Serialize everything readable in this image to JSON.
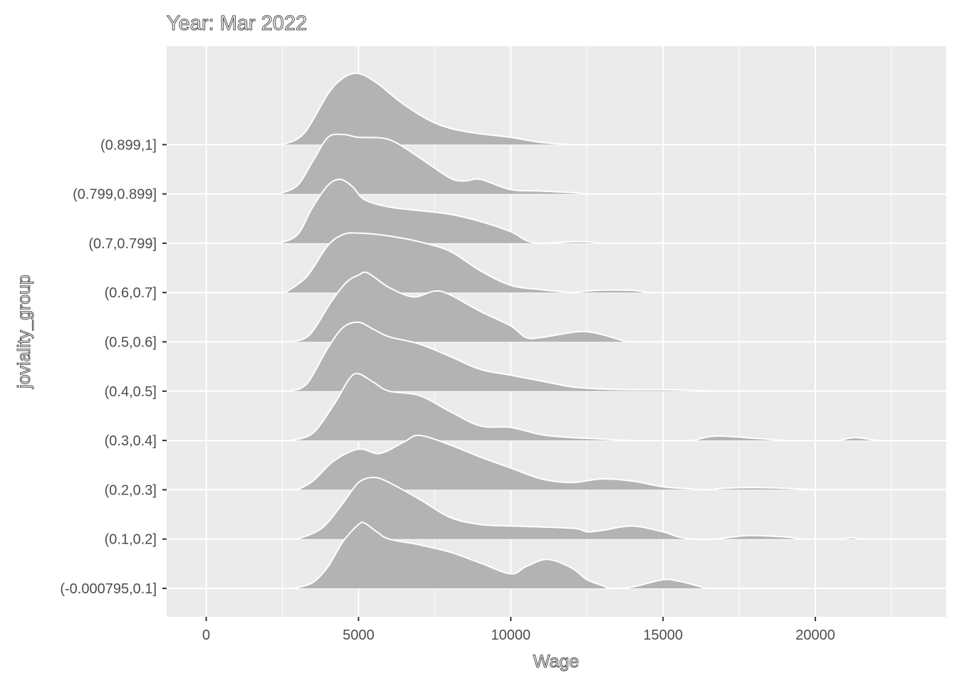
{
  "chart_data": {
    "type": "area",
    "subtype": "ridgeline-density",
    "title": "Year: Mar 2022",
    "xlabel": "Wage",
    "ylabel": "joviality_group",
    "xlim": [
      -1300,
      24300
    ],
    "x_ticks": [
      0,
      5000,
      10000,
      15000,
      20000
    ],
    "grid": true,
    "categories": [
      "(-0.000795,0.1]",
      "(0.1,0.2]",
      "(0.2,0.3]",
      "(0.3,0.4]",
      "(0.4,0.5]",
      "(0.5,0.6]",
      "(0.6,0.7]",
      "(0.7,0.799]",
      "(0.799,0.899]",
      "(0.899,1]"
    ],
    "series": [
      {
        "category": "(-0.000795,0.1]",
        "segments": [
          [
            [
              2900,
              0
            ],
            [
              3500,
              0.08
            ],
            [
              4000,
              0.3
            ],
            [
              4500,
              0.65
            ],
            [
              5000,
              0.88
            ],
            [
              5200,
              0.9
            ],
            [
              5600,
              0.78
            ],
            [
              6000,
              0.68
            ],
            [
              7000,
              0.6
            ],
            [
              8000,
              0.5
            ],
            [
              9000,
              0.35
            ],
            [
              10000,
              0.2
            ],
            [
              10500,
              0.3
            ],
            [
              11200,
              0.4
            ],
            [
              12000,
              0.28
            ],
            [
              12500,
              0.12
            ],
            [
              13000,
              0.04
            ],
            [
              13300,
              0.0
            ],
            [
              14000,
              0.02
            ],
            [
              15000,
              0.12
            ],
            [
              15500,
              0.1
            ],
            [
              16000,
              0.05
            ],
            [
              16400,
              0.0
            ]
          ]
        ]
      },
      {
        "category": "(0.1,0.2]",
        "segments": [
          [
            [
              3000,
              0
            ],
            [
              3800,
              0.15
            ],
            [
              4500,
              0.5
            ],
            [
              5000,
              0.78
            ],
            [
              5500,
              0.85
            ],
            [
              6000,
              0.78
            ],
            [
              7000,
              0.55
            ],
            [
              8000,
              0.3
            ],
            [
              9000,
              0.2
            ],
            [
              10000,
              0.18
            ],
            [
              12000,
              0.15
            ],
            [
              12500,
              0.1
            ],
            [
              13000,
              0.12
            ],
            [
              14000,
              0.18
            ],
            [
              15000,
              0.1
            ],
            [
              15500,
              0.03
            ],
            [
              16000,
              0.0
            ],
            [
              16700,
              0.0
            ],
            [
              17500,
              0.04
            ],
            [
              18000,
              0.05
            ],
            [
              19000,
              0.03
            ],
            [
              19500,
              0.0
            ]
          ],
          [
            [
              20800,
              0
            ],
            [
              21200,
              0.02
            ],
            [
              21500,
              0.0
            ]
          ]
        ]
      },
      {
        "category": "(0.2,0.3]",
        "segments": [
          [
            [
              3000,
              0
            ],
            [
              3500,
              0.12
            ],
            [
              4200,
              0.4
            ],
            [
              5000,
              0.56
            ],
            [
              5700,
              0.5
            ],
            [
              6500,
              0.66
            ],
            [
              7000,
              0.75
            ],
            [
              8000,
              0.62
            ],
            [
              9000,
              0.45
            ],
            [
              10000,
              0.3
            ],
            [
              11000,
              0.15
            ],
            [
              12000,
              0.1
            ],
            [
              13000,
              0.15
            ],
            [
              14000,
              0.12
            ],
            [
              15000,
              0.04
            ],
            [
              16000,
              0.01
            ],
            [
              16500,
              0.0
            ],
            [
              17000,
              0.02
            ],
            [
              18000,
              0.03
            ],
            [
              19000,
              0.02
            ],
            [
              20000,
              0.0
            ]
          ]
        ]
      },
      {
        "category": "(0.3,0.4]",
        "segments": [
          [
            [
              2800,
              0
            ],
            [
              3500,
              0.1
            ],
            [
              4200,
              0.5
            ],
            [
              4700,
              0.85
            ],
            [
              5000,
              0.92
            ],
            [
              5500,
              0.8
            ],
            [
              6000,
              0.68
            ],
            [
              7000,
              0.62
            ],
            [
              8000,
              0.4
            ],
            [
              9000,
              0.2
            ],
            [
              10000,
              0.18
            ],
            [
              11000,
              0.08
            ],
            [
              12000,
              0.04
            ],
            [
              13000,
              0.02
            ],
            [
              13800,
              0.0
            ]
          ],
          [
            [
              16000,
              0
            ],
            [
              16500,
              0.05
            ],
            [
              17000,
              0.06
            ],
            [
              18000,
              0.03
            ],
            [
              19000,
              0.0
            ]
          ],
          [
            [
              20800,
              0
            ],
            [
              21300,
              0.04
            ],
            [
              22000,
              0.0
            ]
          ]
        ]
      },
      {
        "category": "(0.4,0.5]",
        "segments": [
          [
            [
              2700,
              0
            ],
            [
              3300,
              0.1
            ],
            [
              4000,
              0.6
            ],
            [
              4500,
              0.88
            ],
            [
              5000,
              0.95
            ],
            [
              5500,
              0.85
            ],
            [
              6000,
              0.75
            ],
            [
              7000,
              0.65
            ],
            [
              8000,
              0.48
            ],
            [
              9000,
              0.3
            ],
            [
              10000,
              0.22
            ],
            [
              11000,
              0.14
            ],
            [
              12000,
              0.06
            ],
            [
              13000,
              0.03
            ],
            [
              14000,
              0.02
            ],
            [
              15000,
              0.02
            ],
            [
              16000,
              0.01
            ],
            [
              16800,
              0.0
            ]
          ]
        ]
      },
      {
        "category": "(0.5,0.6]",
        "segments": [
          [
            [
              2800,
              0
            ],
            [
              3400,
              0.1
            ],
            [
              4100,
              0.55
            ],
            [
              4600,
              0.82
            ],
            [
              5000,
              0.92
            ],
            [
              5300,
              0.95
            ],
            [
              6000,
              0.75
            ],
            [
              6800,
              0.62
            ],
            [
              7500,
              0.7
            ],
            [
              8000,
              0.65
            ],
            [
              9000,
              0.42
            ],
            [
              10000,
              0.22
            ],
            [
              10500,
              0.06
            ],
            [
              11000,
              0.06
            ],
            [
              12000,
              0.13
            ],
            [
              12500,
              0.14
            ],
            [
              13000,
              0.1
            ],
            [
              13800,
              0.0
            ]
          ]
        ]
      },
      {
        "category": "(0.6,0.7]",
        "segments": [
          [
            [
              2600,
              0
            ],
            [
              3300,
              0.22
            ],
            [
              4000,
              0.65
            ],
            [
              4500,
              0.8
            ],
            [
              5000,
              0.82
            ],
            [
              6000,
              0.78
            ],
            [
              7000,
              0.7
            ],
            [
              8000,
              0.57
            ],
            [
              9000,
              0.3
            ],
            [
              10000,
              0.1
            ],
            [
              11000,
              0.04
            ],
            [
              12000,
              0.0
            ]
          ],
          [
            [
              12000,
              0
            ],
            [
              12800,
              0.03
            ],
            [
              14000,
              0.03
            ],
            [
              14500,
              0.0
            ]
          ]
        ]
      },
      {
        "category": "(0.7,0.799]",
        "segments": [
          [
            [
              2400,
              0
            ],
            [
              3000,
              0.12
            ],
            [
              3500,
              0.5
            ],
            [
              4000,
              0.8
            ],
            [
              4400,
              0.88
            ],
            [
              4800,
              0.78
            ],
            [
              5200,
              0.6
            ],
            [
              6000,
              0.5
            ],
            [
              7000,
              0.45
            ],
            [
              8000,
              0.4
            ],
            [
              9000,
              0.3
            ],
            [
              10000,
              0.16
            ],
            [
              10500,
              0.04
            ],
            [
              11000,
              0.0
            ],
            [
              12000,
              0.02
            ],
            [
              12500,
              0.02
            ],
            [
              13000,
              0.0
            ]
          ]
        ]
      },
      {
        "category": "(0.799,0.899]",
        "segments": [
          [
            [
              2400,
              0
            ],
            [
              3000,
              0.12
            ],
            [
              3500,
              0.45
            ],
            [
              4000,
              0.78
            ],
            [
              4500,
              0.82
            ],
            [
              5000,
              0.78
            ],
            [
              6000,
              0.75
            ],
            [
              7000,
              0.5
            ],
            [
              8000,
              0.22
            ],
            [
              8500,
              0.18
            ],
            [
              9000,
              0.2
            ],
            [
              10000,
              0.06
            ],
            [
              11000,
              0.04
            ],
            [
              12000,
              0.02
            ],
            [
              12500,
              0.0
            ]
          ]
        ]
      },
      {
        "category": "(0.899,1]",
        "segments": [
          [
            [
              2500,
              0
            ],
            [
              3200,
              0.15
            ],
            [
              4000,
              0.7
            ],
            [
              4500,
              0.92
            ],
            [
              5000,
              0.98
            ],
            [
              5600,
              0.85
            ],
            [
              6500,
              0.55
            ],
            [
              7500,
              0.3
            ],
            [
              8500,
              0.18
            ],
            [
              10000,
              0.1
            ],
            [
              11000,
              0.03
            ],
            [
              12000,
              0.0
            ]
          ]
        ]
      }
    ]
  }
}
